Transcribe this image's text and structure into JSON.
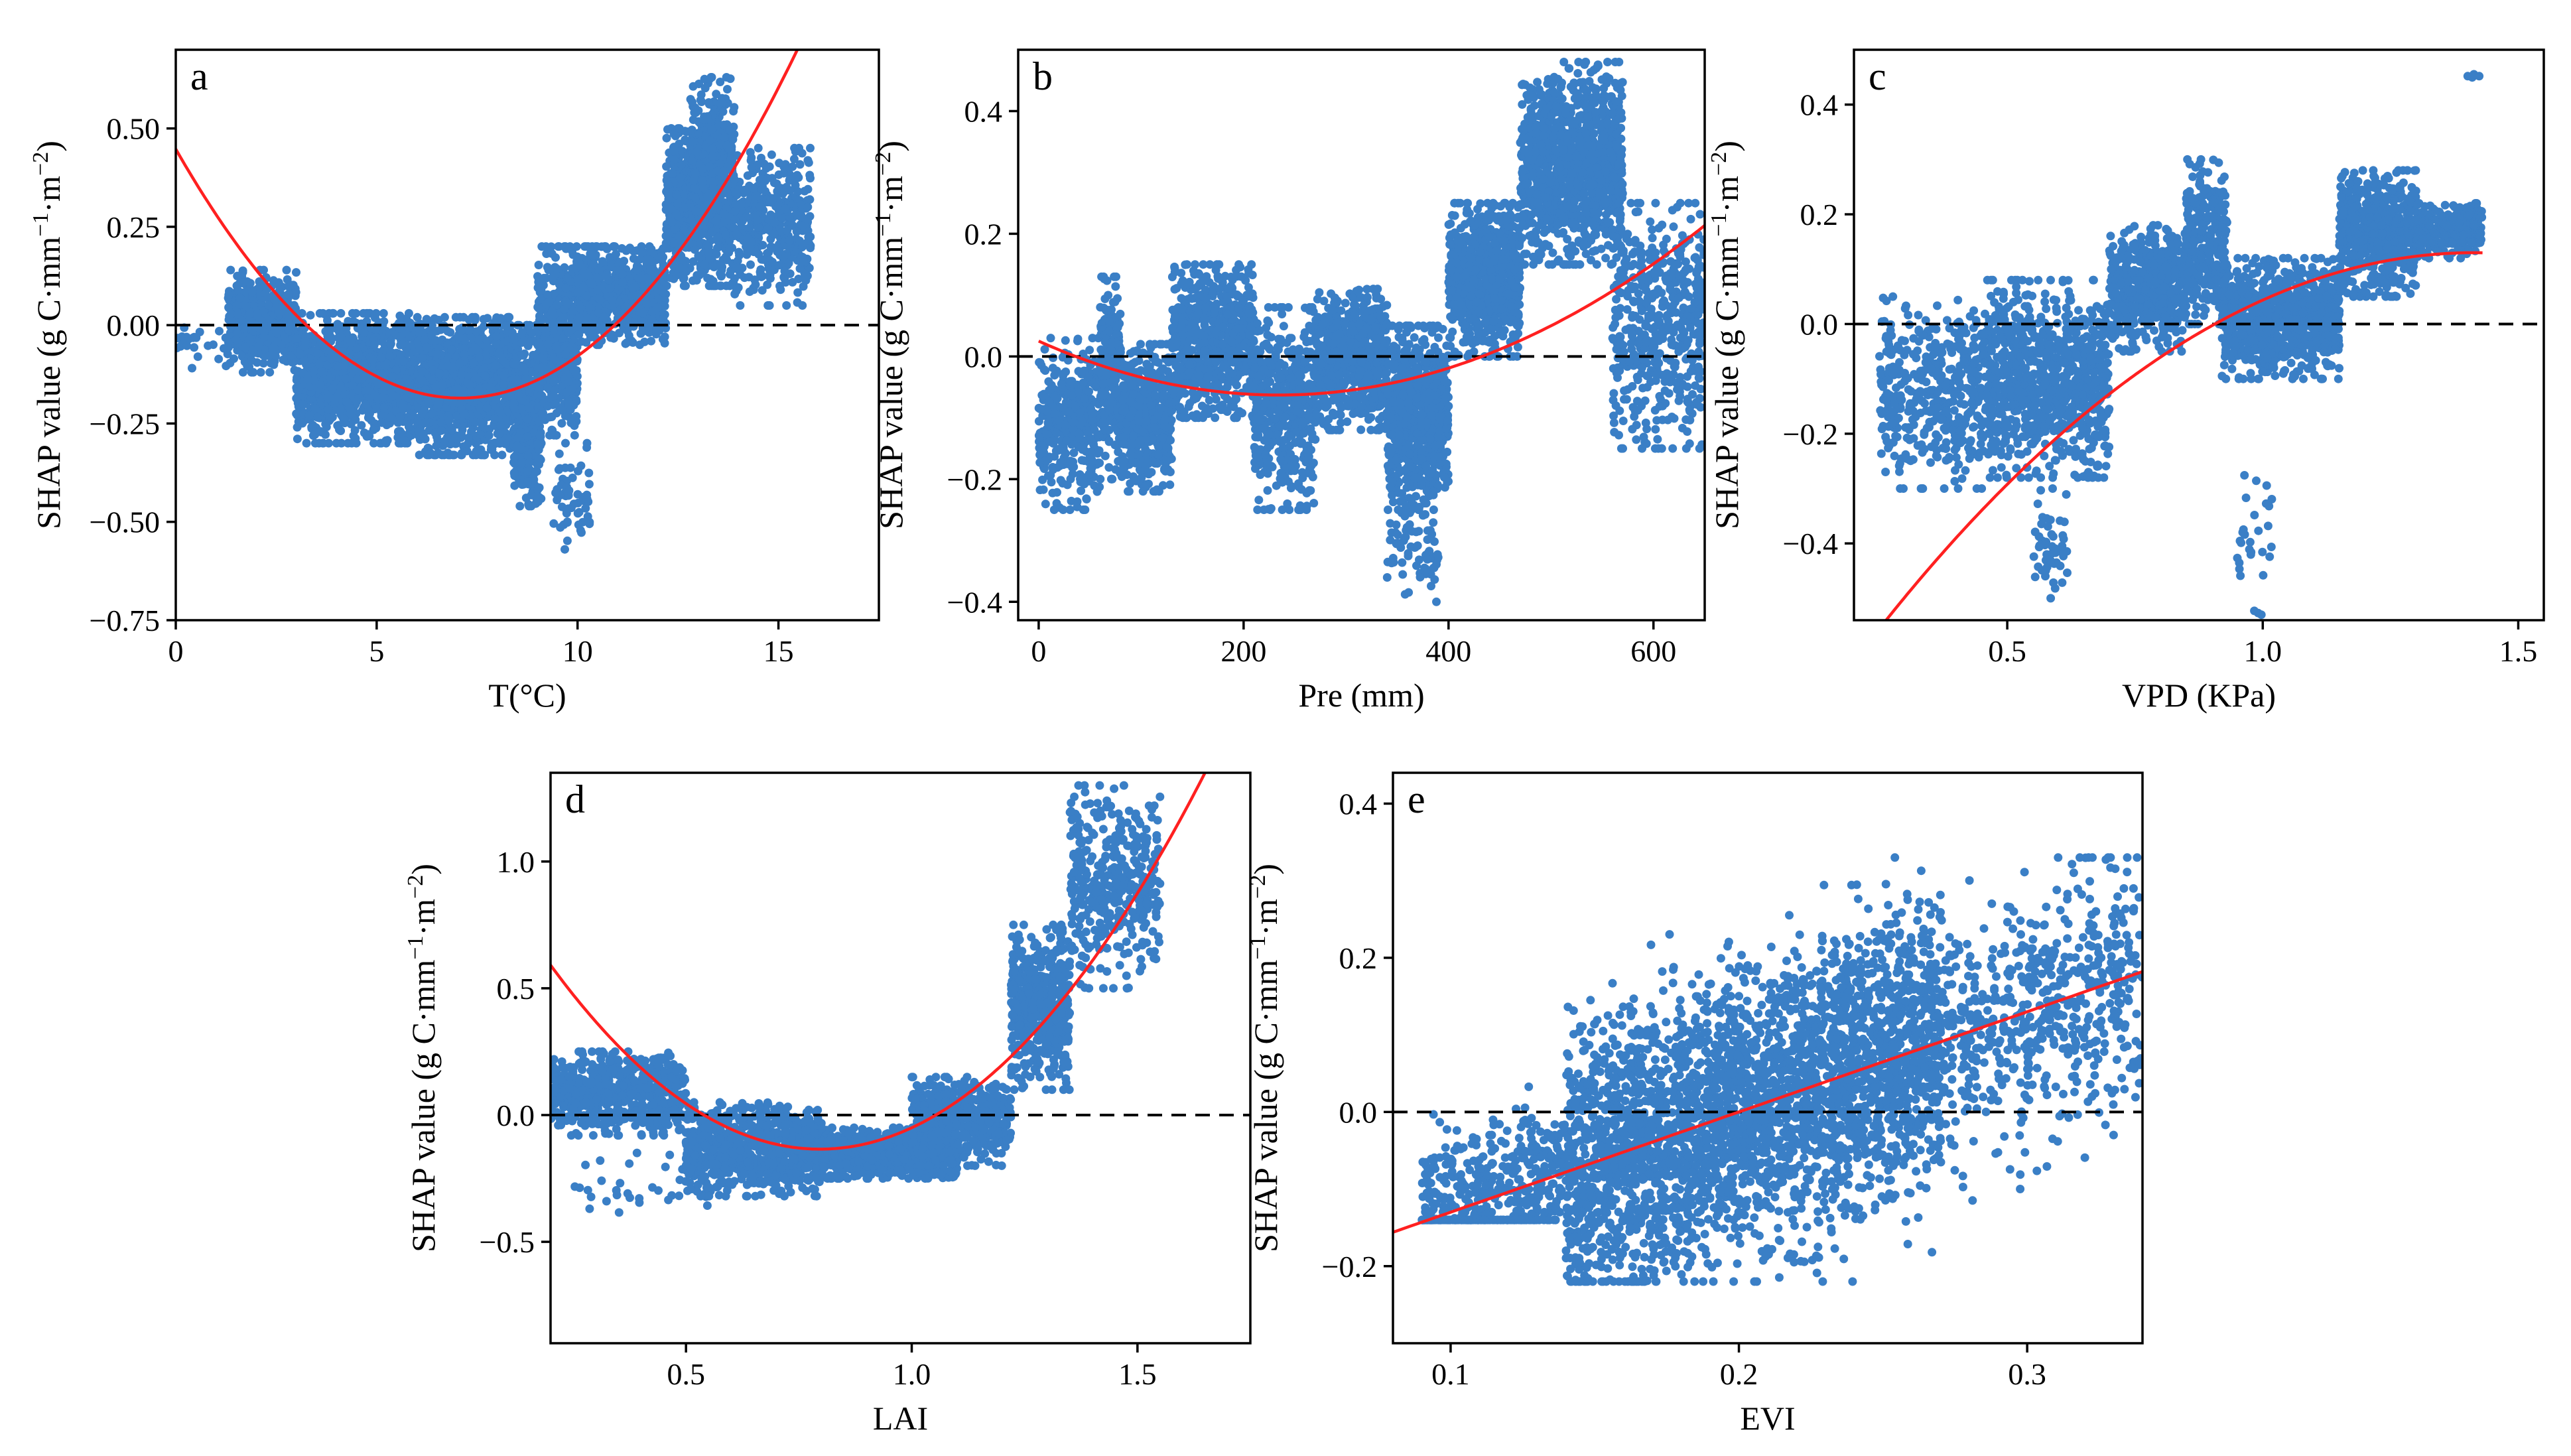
{
  "colors": {
    "points": "#3a7fc6",
    "fit": "#ff2020",
    "zero_line": "#000000",
    "axes": "#000000"
  },
  "chart_data": [
    {
      "panel": "a",
      "type": "scatter",
      "xlabel": "T(°C)",
      "ylabel": "SHAP value (g C·mm",
      "ylabel_unit": "·m",
      "xlim": [
        0,
        17.5
      ],
      "ylim": [
        -0.75,
        0.7
      ],
      "xticks": [
        0,
        5,
        10,
        15
      ],
      "xtick_labels": [
        "0",
        "5",
        "10",
        "15"
      ],
      "yticks": [
        -0.75,
        -0.5,
        -0.25,
        0,
        0.25,
        0.5
      ],
      "ytick_labels": [
        "−0.75",
        "−0.50",
        "−0.25",
        "0.00",
        "0.25",
        "0.50"
      ],
      "reference_line": 0,
      "fit": {
        "kind": "quadratic",
        "coef": [
          0.0126,
          -0.1786,
          0.4475
        ],
        "range": [
          0,
          15.9
        ]
      },
      "clusters": [
        {
          "x": [
            0,
            1.3
          ],
          "y": [
            -0.15,
            0.02
          ],
          "n": 25
        },
        {
          "x": [
            1.3,
            3.0
          ],
          "y": [
            -0.12,
            0.14
          ],
          "n": 500
        },
        {
          "x": [
            3.0,
            6.0
          ],
          "y": [
            -0.3,
            0.03
          ],
          "n": 1200
        },
        {
          "x": [
            6.0,
            8.5
          ],
          "y": [
            -0.33,
            0.02
          ],
          "n": 1200
        },
        {
          "x": [
            8.4,
            9.1
          ],
          "y": [
            -0.46,
            0.0
          ],
          "n": 450
        },
        {
          "x": [
            9.0,
            10.0
          ],
          "y": [
            -0.28,
            0.2
          ],
          "n": 500
        },
        {
          "x": [
            9.4,
            10.3
          ],
          "y": [
            -0.57,
            -0.3
          ],
          "n": 60
        },
        {
          "x": [
            10.0,
            12.2
          ],
          "y": [
            -0.05,
            0.2
          ],
          "n": 700
        },
        {
          "x": [
            12.2,
            12.8
          ],
          "y": [
            0.1,
            0.5
          ],
          "n": 300
        },
        {
          "x": [
            12.8,
            13.9
          ],
          "y": [
            0.1,
            0.63
          ],
          "n": 700
        },
        {
          "x": [
            13.9,
            15.8
          ],
          "y": [
            0.05,
            0.45
          ],
          "n": 400
        }
      ]
    },
    {
      "panel": "b",
      "type": "scatter",
      "xlabel": "Pre (mm)",
      "ylabel": "SHAP value (g C·mm",
      "ylabel_unit": "·m",
      "xlim": [
        -20,
        650
      ],
      "ylim": [
        -0.43,
        0.5
      ],
      "xticks": [
        0,
        200,
        400,
        600
      ],
      "xtick_labels": [
        "0",
        "200",
        "400",
        "600"
      ],
      "yticks": [
        -0.4,
        -0.2,
        0,
        0.2,
        0.4
      ],
      "ytick_labels": [
        "−0.4",
        "−0.2",
        "0.0",
        "0.2",
        "0.4"
      ],
      "reference_line": 0,
      "fit": {
        "kind": "quadratic",
        "coef": [
          1.6e-06,
          -0.00075,
          0.025
        ],
        "range": [
          0,
          650
        ]
      },
      "clusters": [
        {
          "x": [
            0,
            60
          ],
          "y": [
            -0.25,
            0.03
          ],
          "n": 400
        },
        {
          "x": [
            60,
            80
          ],
          "y": [
            -0.2,
            0.13
          ],
          "n": 250
        },
        {
          "x": [
            80,
            130
          ],
          "y": [
            -0.22,
            0.02
          ],
          "n": 500
        },
        {
          "x": [
            130,
            210
          ],
          "y": [
            -0.1,
            0.15
          ],
          "n": 700
        },
        {
          "x": [
            210,
            270
          ],
          "y": [
            -0.25,
            0.08
          ],
          "n": 500
        },
        {
          "x": [
            270,
            340
          ],
          "y": [
            -0.12,
            0.11
          ],
          "n": 700
        },
        {
          "x": [
            340,
            400
          ],
          "y": [
            -0.25,
            0.05
          ],
          "n": 800
        },
        {
          "x": [
            340,
            390
          ],
          "y": [
            -0.4,
            -0.22
          ],
          "n": 80
        },
        {
          "x": [
            400,
            470
          ],
          "y": [
            0.0,
            0.25
          ],
          "n": 800
        },
        {
          "x": [
            470,
            570
          ],
          "y": [
            0.15,
            0.48
          ],
          "n": 1100
        },
        {
          "x": [
            560,
            650
          ],
          "y": [
            -0.15,
            0.25
          ],
          "n": 500
        }
      ]
    },
    {
      "panel": "c",
      "type": "scatter",
      "xlabel": "VPD (KPa)",
      "ylabel": "SHAP value (g C·mm",
      "ylabel_unit": "·m",
      "xlim": [
        0.2,
        1.55
      ],
      "ylim": [
        -0.54,
        0.5
      ],
      "xticks": [
        0.5,
        1.0,
        1.5
      ],
      "xtick_labels": [
        "0.5",
        "1.0",
        "1.5"
      ],
      "yticks": [
        -0.4,
        -0.2,
        0,
        0.2,
        0.4
      ],
      "ytick_labels": [
        "−0.4",
        "−0.2",
        "0.0",
        "0.2",
        "0.4"
      ],
      "reference_line": 0,
      "fit": {
        "kind": "quadratic",
        "coef": [
          -0.5066,
          1.4316,
          -0.8814
        ],
        "range": [
          0.2,
          1.43
        ]
      },
      "clusters": [
        {
          "x": [
            0.25,
            0.45
          ],
          "y": [
            -0.3,
            0.05
          ],
          "n": 400
        },
        {
          "x": [
            0.45,
            0.7
          ],
          "y": [
            -0.28,
            0.08
          ],
          "n": 900
        },
        {
          "x": [
            0.55,
            0.62
          ],
          "y": [
            -0.5,
            -0.3
          ],
          "n": 50
        },
        {
          "x": [
            0.7,
            0.85
          ],
          "y": [
            -0.05,
            0.18
          ],
          "n": 500
        },
        {
          "x": [
            0.85,
            0.93
          ],
          "y": [
            0.0,
            0.3
          ],
          "n": 300
        },
        {
          "x": [
            0.92,
            1.15
          ],
          "y": [
            -0.1,
            0.12
          ],
          "n": 900
        },
        {
          "x": [
            0.95,
            1.02
          ],
          "y": [
            -0.53,
            -0.26
          ],
          "n": 30
        },
        {
          "x": [
            1.15,
            1.3
          ],
          "y": [
            0.05,
            0.28
          ],
          "n": 600
        },
        {
          "x": [
            1.3,
            1.43
          ],
          "y": [
            0.12,
            0.22
          ],
          "n": 300
        },
        {
          "x": [
            1.4,
            1.43
          ],
          "y": [
            0.44,
            0.46
          ],
          "n": 4
        }
      ]
    },
    {
      "panel": "d",
      "type": "scatter",
      "xlabel": "LAI",
      "ylabel": "SHAP value (g C·mm",
      "ylabel_unit": "·m",
      "xlim": [
        0.2,
        1.75
      ],
      "ylim": [
        -0.9,
        1.35
      ],
      "xticks": [
        0.5,
        1.0,
        1.5
      ],
      "xtick_labels": [
        "0.5",
        "1.0",
        "1.5"
      ],
      "yticks": [
        -0.5,
        0,
        0.5,
        1.0
      ],
      "ytick_labels": [
        "−0.5",
        "0.0",
        "0.5",
        "1.0"
      ],
      "reference_line": 0,
      "fit": {
        "kind": "quadratic",
        "coef": [
          2.04,
          -3.25,
          1.16
        ],
        "range": [
          0.2,
          1.65
        ]
      },
      "clusters": [
        {
          "x": [
            0.2,
            0.5
          ],
          "y": [
            -0.08,
            0.25
          ],
          "n": 600
        },
        {
          "x": [
            0.25,
            0.55
          ],
          "y": [
            -0.4,
            -0.1
          ],
          "n": 40
        },
        {
          "x": [
            0.5,
            0.8
          ],
          "y": [
            -0.32,
            0.05
          ],
          "n": 800
        },
        {
          "x": [
            0.8,
            1.1
          ],
          "y": [
            -0.25,
            -0.05
          ],
          "n": 900
        },
        {
          "x": [
            1.0,
            1.22
          ],
          "y": [
            -0.2,
            0.15
          ],
          "n": 500
        },
        {
          "x": [
            1.22,
            1.35
          ],
          "y": [
            0.1,
            0.75
          ],
          "n": 500
        },
        {
          "x": [
            1.35,
            1.55
          ],
          "y": [
            0.5,
            1.3
          ],
          "n": 400
        }
      ]
    },
    {
      "panel": "e",
      "type": "scatter",
      "xlabel": "EVI",
      "ylabel": "SHAP value (g C·mm",
      "ylabel_unit": "·m",
      "xlim": [
        0.08,
        0.34
      ],
      "ylim": [
        -0.3,
        0.44
      ],
      "xticks": [
        0.1,
        0.2,
        0.3
      ],
      "xtick_labels": [
        "0.1",
        "0.2",
        "0.3"
      ],
      "yticks": [
        -0.2,
        0,
        0.2,
        0.4
      ],
      "ytick_labels": [
        "−0.2",
        "0.0",
        "0.2",
        "0.4"
      ],
      "reference_line": 0,
      "fit": {
        "kind": "linear",
        "coef": [
          1.3,
          -0.26
        ],
        "range": [
          0.08,
          0.34
        ]
      },
      "clusters": [
        {
          "x": [
            0.09,
            0.14
          ],
          "y": [
            -0.12,
            0.0
          ],
          "n": 500,
          "trend": 1.3,
          "spread": 0.05
        },
        {
          "x": [
            0.14,
            0.27
          ],
          "y": [
            -0.2,
            0.25
          ],
          "n": 3200,
          "trend": 1.3,
          "spread": 0.09
        },
        {
          "x": [
            0.27,
            0.34
          ],
          "y": [
            -0.1,
            0.25
          ],
          "n": 600,
          "trend": 1.3,
          "spread": 0.08
        }
      ]
    }
  ]
}
